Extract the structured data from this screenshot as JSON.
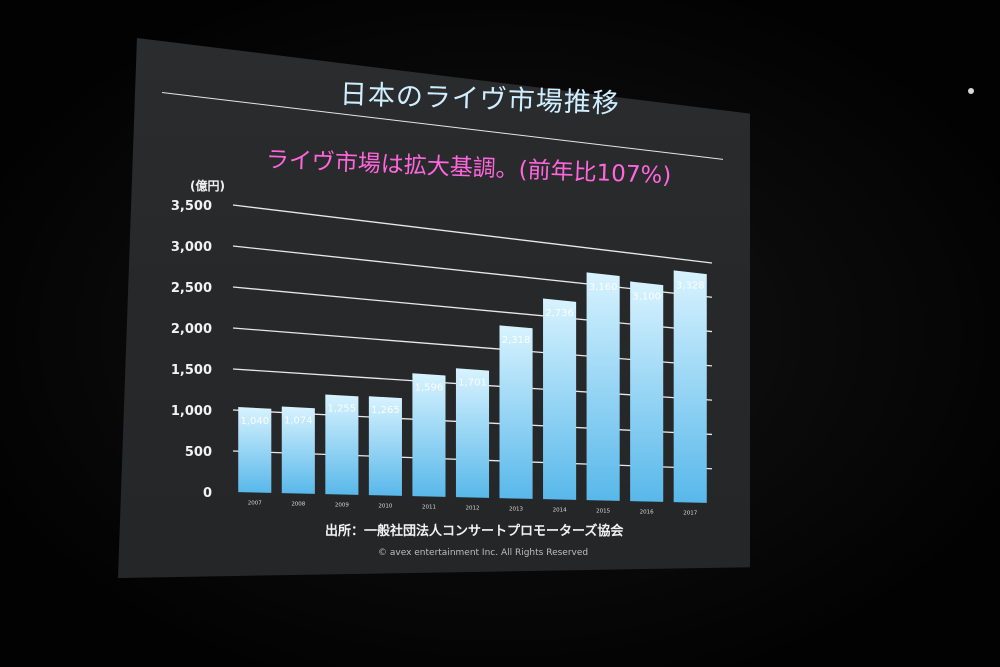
{
  "slide": {
    "title": "日本のライヴ市場推移",
    "subtitle": "ライヴ市場は拡大基調。(前年比107%)",
    "unit": "(億円)",
    "source": "出所：一般社団法人コンサートプロモーターズ協会",
    "copyright": "© avex entertainment Inc. All Rights Reserved"
  },
  "colors": {
    "bar_top": "#d8f3ff",
    "bar_bottom": "#58b8ea",
    "subtitle": "#ff66dd",
    "title": "#cfeeff"
  },
  "chart_data": {
    "type": "bar",
    "categories": [
      "2007",
      "2008",
      "2009",
      "2010",
      "2011",
      "2012",
      "2013",
      "2014",
      "2015",
      "2016",
      "2017"
    ],
    "values": [
      1040,
      1074,
      1255,
      1265,
      1596,
      1701,
      2318,
      2736,
      3160,
      3100,
      3328
    ],
    "value_labels": [
      "1,040",
      "1,074",
      "1,255",
      "1,265",
      "1,596",
      "1,701",
      "2,318",
      "2,736",
      "3,160",
      "3,100",
      "3,328"
    ],
    "title": "",
    "xlabel": "",
    "ylabel": "(億円)",
    "ylim": [
      0,
      3500
    ],
    "yticks": [
      0,
      500,
      1000,
      1500,
      2000,
      2500,
      3000,
      3500
    ],
    "ytick_labels": [
      "0",
      "500",
      "1,000",
      "1,500",
      "2,000",
      "2,500",
      "3,000",
      "3,500"
    ],
    "grid": true,
    "legend": "none"
  }
}
